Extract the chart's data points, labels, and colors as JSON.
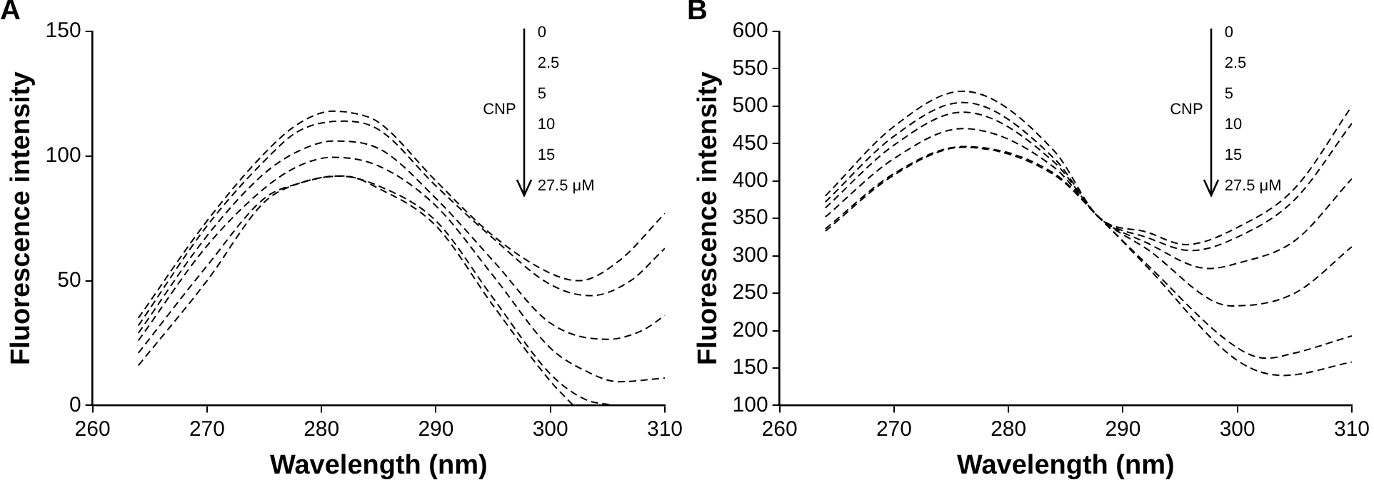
{
  "chart_data": [
    {
      "type": "line",
      "title": "A",
      "xlabel": "Wavelength (nm)",
      "ylabel": "Fluorescence intensity",
      "xlim": [
        260,
        310
      ],
      "xticks": [
        260,
        270,
        280,
        290,
        300,
        310
      ],
      "ylim": [
        0,
        150
      ],
      "yticks": [
        0,
        50,
        100,
        150
      ],
      "grid": false,
      "legend": false,
      "marker": "none",
      "line_style": "dashed",
      "annotations": [
        "CNP",
        "0",
        "2.5",
        "5",
        "10",
        "15",
        "27.5 μM"
      ],
      "series": [
        {
          "color": "#000000",
          "x": [
            264,
            270,
            275,
            278,
            281,
            283,
            285,
            290,
            295,
            300,
            302.5,
            306,
            310
          ],
          "values": [
            35,
            74,
            101,
            113,
            118,
            117,
            113.5,
            90,
            68,
            53,
            50,
            58,
            77
          ]
        },
        {
          "color": "#000000",
          "x": [
            264,
            270,
            275,
            278,
            282,
            285,
            290,
            295,
            300,
            303.5,
            307,
            310
          ],
          "values": [
            32,
            72,
            98,
            110,
            114,
            110.6,
            88,
            67,
            48.5,
            44,
            50,
            63
          ]
        },
        {
          "color": "#000000",
          "x": [
            264,
            270,
            275,
            278,
            281,
            285,
            290,
            295,
            300,
            305,
            308,
            310
          ],
          "values": [
            29,
            68,
            93,
            102,
            106,
            103,
            83,
            58,
            33,
            26.5,
            30,
            36
          ]
        },
        {
          "color": "#000000",
          "x": [
            264,
            270,
            275,
            278,
            281,
            285,
            290,
            295,
            300,
            303,
            306,
            310
          ],
          "values": [
            26,
            64,
            87,
            96,
            99.5,
            96,
            80,
            52,
            23,
            14,
            9.5,
            11
          ]
        },
        {
          "color": "#000000",
          "x": [
            264,
            270,
            275,
            278,
            281.5,
            285,
            290,
            295,
            300,
            303,
            305.5
          ],
          "values": [
            21,
            56,
            83,
            89,
            92,
            88,
            74,
            43,
            12.6,
            2.5,
            0
          ]
        },
        {
          "color": "#000000",
          "x": [
            264,
            270,
            275,
            278,
            282,
            285,
            290,
            295,
            300,
            302
          ],
          "values": [
            16,
            50,
            81.5,
            89,
            92,
            87,
            72,
            40,
            9.7,
            0
          ]
        }
      ]
    },
    {
      "type": "line",
      "title": "B",
      "xlabel": "Wavelength (nm)",
      "ylabel": "Fluorescence intensity",
      "xlim": [
        260,
        310
      ],
      "xticks": [
        260,
        270,
        280,
        290,
        300,
        310
      ],
      "ylim": [
        100,
        600
      ],
      "yticks": [
        100,
        150,
        200,
        250,
        300,
        350,
        400,
        450,
        500,
        550,
        600
      ],
      "grid": false,
      "legend": false,
      "marker": "none",
      "line_style": "dashed",
      "annotations": [
        "CNP",
        "0",
        "2.5",
        "5",
        "10",
        "15",
        "27.5 μM"
      ],
      "series": [
        {
          "color": "#000000",
          "x": [
            264,
            270,
            276,
            284,
            288,
            292,
            295.5,
            300,
            305,
            310
          ],
          "values": [
            380,
            473,
            520,
            440,
            350,
            332,
            315,
            338,
            390,
            500
          ]
        },
        {
          "color": "#000000",
          "x": [
            264,
            270,
            276,
            284,
            288,
            292,
            296,
            300,
            305,
            310
          ],
          "values": [
            372,
            460,
            505,
            430,
            350,
            325,
            307,
            325,
            375,
            477
          ]
        },
        {
          "color": "#000000",
          "x": [
            264,
            270,
            276,
            284,
            288,
            292,
            297.5,
            300,
            305,
            310
          ],
          "values": [
            364,
            448,
            492,
            425,
            350,
            318,
            283,
            290,
            320,
            403
          ]
        },
        {
          "color": "#000000",
          "x": [
            264,
            270,
            276,
            284,
            288,
            292,
            299.5,
            305,
            310
          ],
          "values": [
            352,
            430,
            470,
            418,
            350,
            310,
            233,
            250,
            312
          ]
        },
        {
          "color": "#000000",
          "x": [
            264,
            270,
            276,
            284,
            288,
            292,
            300,
            302.5,
            305,
            310
          ],
          "values": [
            336,
            410,
            446,
            410,
            350,
            290,
            177,
            163,
            170,
            193
          ]
        },
        {
          "color": "#000000",
          "x": [
            264,
            270,
            276,
            284,
            288,
            292,
            300,
            304,
            310
          ],
          "values": [
            333,
            408,
            445,
            408,
            350,
            287,
            160,
            140,
            158
          ]
        }
      ]
    }
  ]
}
